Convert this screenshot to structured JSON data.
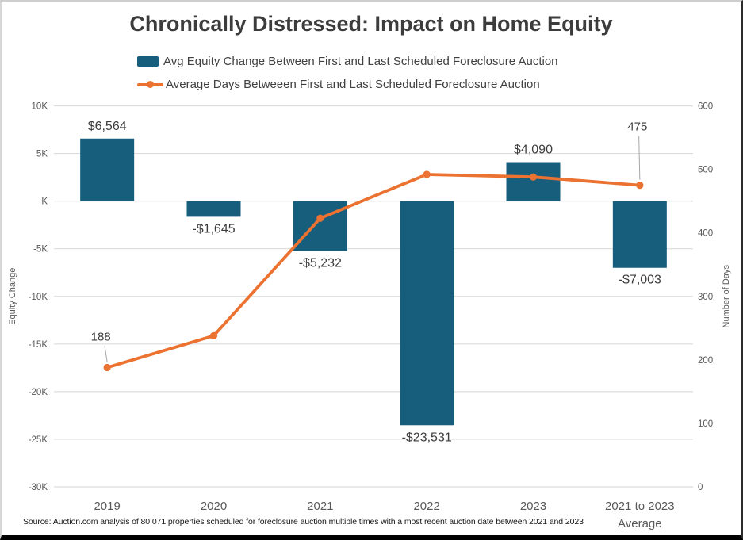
{
  "title": "Chronically Distressed: Impact on Home Equity",
  "legend": [
    {
      "type": "bar",
      "label": "Avg Equity Change Between First and Last Scheduled Foreclosure Auction",
      "color": "#175E7D"
    },
    {
      "type": "line",
      "label": "Average Days Betweeen First and Last Scheduled Foreclosure Auction",
      "color": "#EB7230"
    }
  ],
  "source": "Source: Auction.com analysis of 80,071 properties scheduled for foreclosure auction multiple times with a most recent auction date between 2021 and 2023",
  "chart_data": {
    "type": "combo",
    "categories": [
      "2019",
      "2020",
      "2021",
      "2022",
      "2023",
      "2021 to 2023 Average"
    ],
    "series": [
      {
        "name": "Avg Equity Change Between First and Last Scheduled Foreclosure Auction",
        "type": "bar",
        "axis": "left",
        "color": "#175E7D",
        "values": [
          6564,
          -1645,
          -5232,
          -23531,
          4090,
          -7003
        ],
        "labels": [
          "$6,564",
          "-$1,645",
          "-$5,232",
          "-$23,531",
          "$4,090",
          "-$7,003"
        ]
      },
      {
        "name": "Average Days Betweeen First and Last Scheduled Foreclosure Auction",
        "type": "line",
        "axis": "right",
        "color": "#EB7230",
        "values": [
          188,
          238,
          423,
          492,
          488,
          475
        ],
        "point_labels": {
          "0": "188",
          "5": "475"
        }
      }
    ],
    "left_axis": {
      "title": "Equity Change",
      "min": -30000,
      "max": 10000,
      "step": 5000,
      "tick_labels": [
        "10K",
        "5K",
        "K",
        "-5K",
        "-10K",
        "-15K",
        "-20K",
        "-25K",
        "-30K"
      ]
    },
    "right_axis": {
      "title": "Number of Days",
      "min": 0,
      "max": 600,
      "step": 100,
      "tick_labels": [
        "600",
        "500",
        "400",
        "300",
        "200",
        "100",
        "0"
      ]
    },
    "grid": true,
    "grid_color": "#DCDCDC",
    "legend_position": "top"
  }
}
